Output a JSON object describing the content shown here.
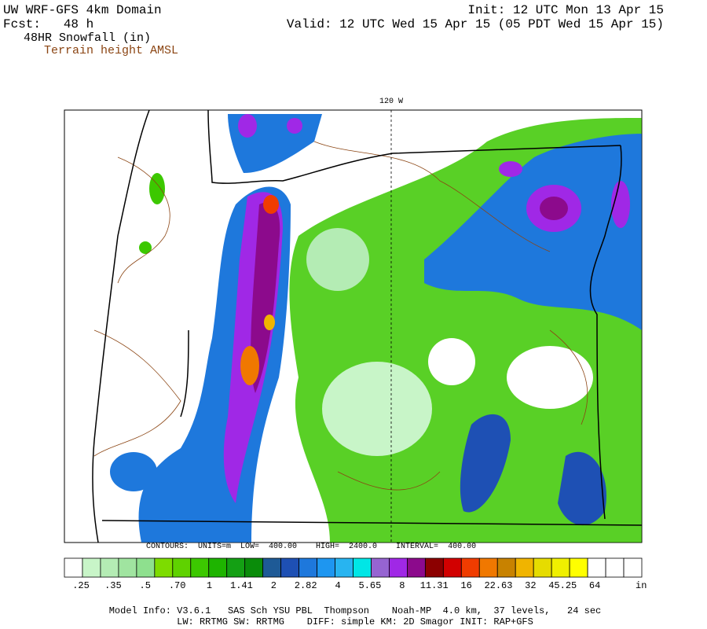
{
  "header": {
    "model": "UW WRF-GFS 4km Domain",
    "forecast": "Fcst:   48 h",
    "field": "48HR Snowfall (in)",
    "overlay": "Terrain height AMSL",
    "init": "Init: 12 UTC Mon 13 Apr 15",
    "valid": "Valid: 12 UTC Wed 15 Apr 15 (05 PDT Wed 15 Apr 15)"
  },
  "map": {
    "meridian_label": "120 W",
    "contour_info": "CONTOURS:  UNITS=m  LOW=  400.00    HIGH=  2400.0    INTERVAL=  400.00"
  },
  "colorbar": {
    "labels": [
      ".25",
      ".35",
      ".5",
      ".70",
      "1",
      "1.41",
      "2",
      "2.82",
      "4",
      "5.65",
      "8",
      "11.31",
      "16",
      "22.63",
      "32",
      "45.25",
      "64"
    ],
    "unit": "in",
    "colors": [
      "#ffffff",
      "#c8f5c8",
      "#b4ecb4",
      "#a0e4a0",
      "#8ee08e",
      "#7ddc00",
      "#5fd200",
      "#3cc800",
      "#1eb400",
      "#14a014",
      "#0a8c0a",
      "#1e5a96",
      "#1e50b4",
      "#1e78dc",
      "#1e96f0",
      "#28b4f0",
      "#00e6e6",
      "#9664d2",
      "#a028e6",
      "#8c0a8c",
      "#8c0000",
      "#d20000",
      "#f03c00",
      "#f07800",
      "#c88200",
      "#f0b400",
      "#e6dc00",
      "#f0f000",
      "#ffff00",
      "#ffffff",
      "#ffffff",
      "#ffffff"
    ]
  },
  "footer": {
    "line1": "Model Info: V3.6.1   SAS Sch YSU PBL  Thompson    Noah-MP  4.0 km,  37 levels,   24 sec",
    "line2": "LW: RRTMG SW: RRTMG    DIFF: simple KM: 2D Smagor INIT: RAP+GFS"
  }
}
